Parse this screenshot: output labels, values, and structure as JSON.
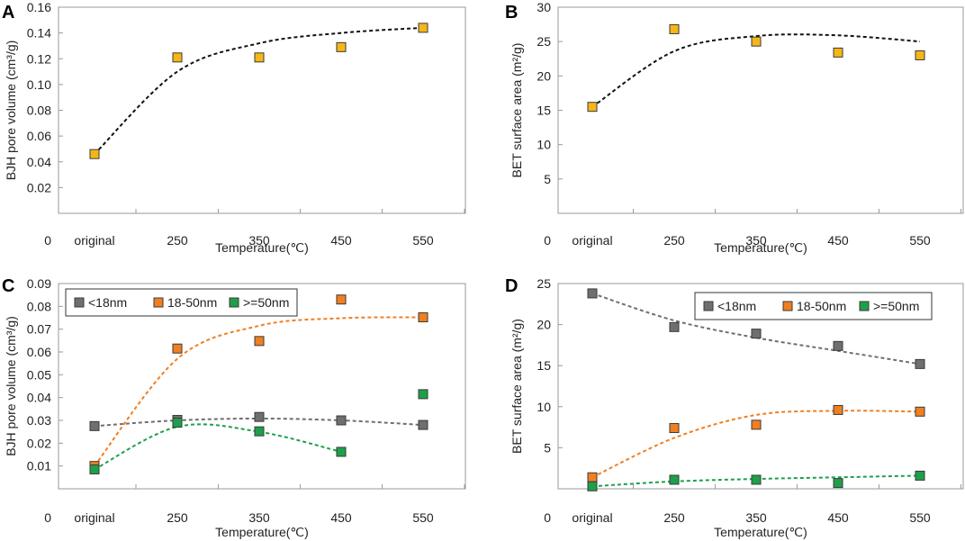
{
  "chart_data": [
    {
      "panel": "A",
      "type": "scatter",
      "categories": [
        "original",
        "250",
        "350",
        "450",
        "550"
      ],
      "x_zero_label": "0",
      "xlabel": "Temperature(℃)",
      "ylabel": "BJH pore volume (cm³/g)",
      "ylim": [
        0,
        0.16
      ],
      "yticks": [
        0.02,
        0.04,
        0.06,
        0.08,
        0.1,
        0.12,
        0.14,
        0.16
      ],
      "ytick_labels": [
        "0.02",
        "0.04",
        "0.06",
        "0.08",
        "0.10",
        "0.12",
        "0.14",
        "0.16"
      ],
      "series": [
        {
          "name": "BJH pore volume",
          "color": "#f5b718",
          "values": [
            0.046,
            0.121,
            0.121,
            0.129,
            0.144
          ],
          "trend": [
            0.046,
            0.11,
            0.132,
            0.14,
            0.144
          ],
          "trend_color": "#111111"
        }
      ],
      "legend": []
    },
    {
      "panel": "B",
      "type": "scatter",
      "categories": [
        "original",
        "250",
        "350",
        "450",
        "550"
      ],
      "x_zero_label": "0",
      "xlabel": "Temperature(℃)",
      "ylabel": "BET surface area (m²/g)",
      "ylim": [
        0,
        30
      ],
      "yticks": [
        5,
        10,
        15,
        20,
        25,
        30
      ],
      "ytick_labels": [
        "5",
        "10",
        "15",
        "20",
        "25",
        "30"
      ],
      "series": [
        {
          "name": "BET surface area",
          "color": "#f5b718",
          "values": [
            15.5,
            26.8,
            25.0,
            23.4,
            23.0
          ],
          "trend": [
            15.5,
            23.6,
            25.8,
            25.9,
            25.0
          ],
          "trend_color": "#111111"
        }
      ],
      "legend": []
    },
    {
      "panel": "C",
      "type": "scatter",
      "categories": [
        "original",
        "250",
        "350",
        "450",
        "550"
      ],
      "x_zero_label": "0",
      "xlabel": "Temperature(℃)",
      "ylabel": "BJH pore volume (cm³/g)",
      "ylim": [
        0,
        0.09
      ],
      "yticks": [
        0.01,
        0.02,
        0.03,
        0.04,
        0.05,
        0.06,
        0.07,
        0.08,
        0.09
      ],
      "ytick_labels": [
        "0.01",
        "0.02",
        "0.03",
        "0.04",
        "0.05",
        "0.06",
        "0.07",
        "0.08",
        "0.09"
      ],
      "series": [
        {
          "name": "<18nm",
          "color": "#6f6f6f",
          "values": [
            0.0275,
            0.0302,
            0.0315,
            0.03,
            0.028
          ],
          "trend": [
            0.0275,
            0.03,
            0.0308,
            0.03,
            0.028
          ],
          "trend_color": "#6f6f6f"
        },
        {
          "name": "18-50nm",
          "color": "#f07f21",
          "values": [
            0.01,
            0.0615,
            0.0648,
            0.083,
            0.0752
          ],
          "trend": [
            0.01,
            0.057,
            0.0715,
            0.0748,
            0.0752
          ],
          "trend_color": "#f07f21"
        },
        {
          "name": ">=50nm",
          "color": "#1ea04a",
          "values": [
            0.0085,
            0.029,
            0.0252,
            0.0162,
            0.0415
          ],
          "trend": [
            0.0085,
            0.0272,
            0.025,
            0.0162
          ],
          "trend_color": "#1ea04a"
        }
      ],
      "legend": [
        "<18nm",
        "18-50nm",
        ">=50nm"
      ]
    },
    {
      "panel": "D",
      "type": "scatter",
      "categories": [
        "original",
        "250",
        "350",
        "450",
        "550"
      ],
      "x_zero_label": "0",
      "xlabel": "Temperature(℃)",
      "ylabel": "BET surface area (m²/g)",
      "ylim": [
        0,
        25
      ],
      "yticks": [
        5,
        10,
        15,
        20,
        25
      ],
      "ytick_labels": [
        "5",
        "10",
        "15",
        "20",
        "25"
      ],
      "series": [
        {
          "name": "<18nm",
          "color": "#6f6f6f",
          "values": [
            23.8,
            19.7,
            18.9,
            17.4,
            15.2
          ],
          "trend": [
            23.8,
            20.5,
            18.4,
            16.8,
            15.2
          ],
          "trend_color": "#6f6f6f"
        },
        {
          "name": "18-50nm",
          "color": "#f07f21",
          "values": [
            1.4,
            7.4,
            7.8,
            9.6,
            9.4
          ],
          "trend": [
            1.4,
            6.2,
            9.0,
            9.5,
            9.4
          ],
          "trend_color": "#f07f21"
        },
        {
          "name": ">=50nm",
          "color": "#1ea04a",
          "values": [
            0.3,
            1.1,
            1.1,
            0.7,
            1.6
          ],
          "trend": [
            0.3,
            0.9,
            1.2,
            1.4,
            1.6
          ],
          "trend_color": "#1ea04a"
        }
      ],
      "legend": [
        "<18nm",
        "18-50nm",
        ">=50nm"
      ]
    }
  ]
}
